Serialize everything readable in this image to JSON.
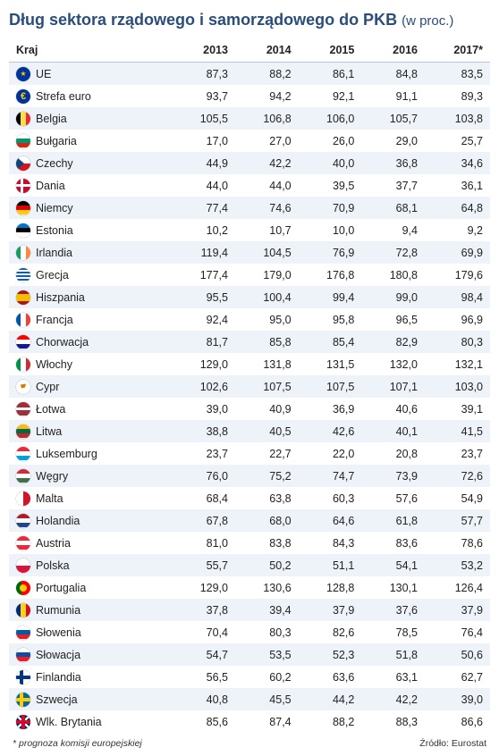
{
  "title_main": "Dług sektora rządowego i samorządowego do PKB",
  "title_sub": "(w proc.)",
  "columns": {
    "c0": "Kraj",
    "c1": "2013",
    "c2": "2014",
    "c3": "2015",
    "c4": "2016",
    "c5": "2017*"
  },
  "footnote": "* prognoza komisji europejskiej",
  "source": "Źródło: Eurostat",
  "colors": {
    "title": "#2a4d7a",
    "row_even": "#eef3f9",
    "row_odd": "#ffffff",
    "header_border": "#b8c6d8"
  },
  "rows": [
    {
      "country": "UE",
      "flag": "eu",
      "v": [
        "87,3",
        "88,2",
        "86,1",
        "84,8",
        "83,5"
      ]
    },
    {
      "country": "Strefa euro",
      "flag": "euro",
      "v": [
        "93,7",
        "94,2",
        "92,1",
        "91,1",
        "89,3"
      ]
    },
    {
      "country": "Belgia",
      "flag": "be",
      "v": [
        "105,5",
        "106,8",
        "106,0",
        "105,7",
        "103,8"
      ]
    },
    {
      "country": "Bułgaria",
      "flag": "bg",
      "v": [
        "17,0",
        "27,0",
        "26,0",
        "29,0",
        "25,7"
      ]
    },
    {
      "country": "Czechy",
      "flag": "cz",
      "v": [
        "44,9",
        "42,2",
        "40,0",
        "36,8",
        "34,6"
      ]
    },
    {
      "country": "Dania",
      "flag": "dk",
      "v": [
        "44,0",
        "44,0",
        "39,5",
        "37,7",
        "36,1"
      ]
    },
    {
      "country": "Niemcy",
      "flag": "de",
      "v": [
        "77,4",
        "74,6",
        "70,9",
        "68,1",
        "64,8"
      ]
    },
    {
      "country": "Estonia",
      "flag": "ee",
      "v": [
        "10,2",
        "10,7",
        "10,0",
        "9,4",
        "9,2"
      ]
    },
    {
      "country": "Irlandia",
      "flag": "ie",
      "v": [
        "119,4",
        "104,5",
        "76,9",
        "72,8",
        "69,9"
      ]
    },
    {
      "country": "Grecja",
      "flag": "gr",
      "v": [
        "177,4",
        "179,0",
        "176,8",
        "180,8",
        "179,6"
      ]
    },
    {
      "country": "Hiszpania",
      "flag": "es",
      "v": [
        "95,5",
        "100,4",
        "99,4",
        "99,0",
        "98,4"
      ]
    },
    {
      "country": "Francja",
      "flag": "fr",
      "v": [
        "92,4",
        "95,0",
        "95,8",
        "96,5",
        "96,9"
      ]
    },
    {
      "country": "Chorwacja",
      "flag": "hr",
      "v": [
        "81,7",
        "85,8",
        "85,4",
        "82,9",
        "80,3"
      ]
    },
    {
      "country": "Włochy",
      "flag": "it",
      "v": [
        "129,0",
        "131,8",
        "131,5",
        "132,0",
        "132,1"
      ]
    },
    {
      "country": "Cypr",
      "flag": "cy",
      "v": [
        "102,6",
        "107,5",
        "107,5",
        "107,1",
        "103,0"
      ]
    },
    {
      "country": "Łotwa",
      "flag": "lv",
      "v": [
        "39,0",
        "40,9",
        "36,9",
        "40,6",
        "39,1"
      ]
    },
    {
      "country": "Litwa",
      "flag": "lt",
      "v": [
        "38,8",
        "40,5",
        "42,6",
        "40,1",
        "41,5"
      ]
    },
    {
      "country": "Luksemburg",
      "flag": "lu",
      "v": [
        "23,7",
        "22,7",
        "22,0",
        "20,8",
        "23,7"
      ]
    },
    {
      "country": "Węgry",
      "flag": "hu",
      "v": [
        "76,0",
        "75,2",
        "74,7",
        "73,9",
        "72,6"
      ]
    },
    {
      "country": "Malta",
      "flag": "mt",
      "v": [
        "68,4",
        "63,8",
        "60,3",
        "57,6",
        "54,9"
      ]
    },
    {
      "country": "Holandia",
      "flag": "nl",
      "v": [
        "67,8",
        "68,0",
        "64,6",
        "61,8",
        "57,7"
      ]
    },
    {
      "country": "Austria",
      "flag": "at",
      "v": [
        "81,0",
        "83,8",
        "84,3",
        "83,6",
        "78,6"
      ]
    },
    {
      "country": "Polska",
      "flag": "pl",
      "v": [
        "55,7",
        "50,2",
        "51,1",
        "54,1",
        "53,2"
      ]
    },
    {
      "country": "Portugalia",
      "flag": "pt",
      "v": [
        "129,0",
        "130,6",
        "128,8",
        "130,1",
        "126,4"
      ]
    },
    {
      "country": "Rumunia",
      "flag": "ro",
      "v": [
        "37,8",
        "39,4",
        "37,9",
        "37,6",
        "37,9"
      ]
    },
    {
      "country": "Słowenia",
      "flag": "si",
      "v": [
        "70,4",
        "80,3",
        "82,6",
        "78,5",
        "76,4"
      ]
    },
    {
      "country": "Słowacja",
      "flag": "sk",
      "v": [
        "54,7",
        "53,5",
        "52,3",
        "51,8",
        "50,6"
      ]
    },
    {
      "country": "Finlandia",
      "flag": "fi",
      "v": [
        "56,5",
        "60,2",
        "63,6",
        "63,1",
        "62,7"
      ]
    },
    {
      "country": "Szwecja",
      "flag": "se",
      "v": [
        "40,8",
        "45,5",
        "44,2",
        "42,2",
        "39,0"
      ]
    },
    {
      "country": "Wlk. Brytania",
      "flag": "gb",
      "v": [
        "85,6",
        "87,4",
        "88,2",
        "88,3",
        "86,6"
      ]
    }
  ]
}
